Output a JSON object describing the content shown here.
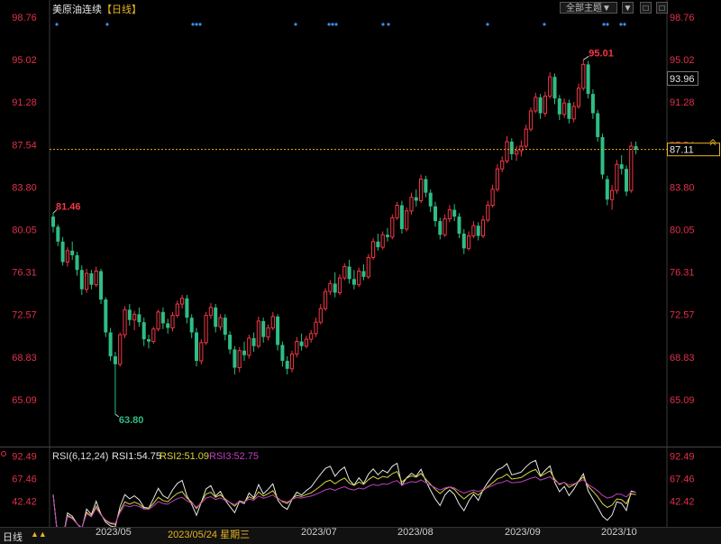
{
  "header": {
    "title": "美原油连续",
    "period_tag": "【日线】",
    "theme_button": "全部主题▼",
    "tool_buttons": [
      "▼",
      "□",
      "□"
    ]
  },
  "chart_data": {
    "type": "candlestick",
    "title": "美原油连续",
    "period": "日线",
    "y_ticks": [
      "98.76",
      "95.02",
      "91.28",
      "87.54",
      "83.80",
      "80.05",
      "76.31",
      "72.57",
      "68.83",
      "65.09"
    ],
    "ylim": [
      61.35,
      98.76
    ],
    "annotations": {
      "high_label": "95.01",
      "low_label": "63.80",
      "start_label": "81.46",
      "crosshair_value": "93.96",
      "last_price": "87.11",
      "crosshair_level": 87.11
    },
    "x_labels": [
      "2023/05",
      "2023/05/24 星期三",
      "2023/07",
      "2023/08",
      "2023/09",
      "2023/10"
    ],
    "candles": [
      [
        81.2,
        81.5,
        79.8,
        80.3
      ],
      [
        80.3,
        80.5,
        78.6,
        79.0
      ],
      [
        79.0,
        79.4,
        76.9,
        77.2
      ],
      [
        77.2,
        78.5,
        76.8,
        78.2
      ],
      [
        78.2,
        79.0,
        77.4,
        77.8
      ],
      [
        77.8,
        78.1,
        76.0,
        76.5
      ],
      [
        76.5,
        76.9,
        74.3,
        74.8
      ],
      [
        74.8,
        76.6,
        74.5,
        76.2
      ],
      [
        76.2,
        76.5,
        74.8,
        75.2
      ],
      [
        75.2,
        76.8,
        75.0,
        76.4
      ],
      [
        76.4,
        76.6,
        73.5,
        73.9
      ],
      [
        73.9,
        74.1,
        70.6,
        71.0
      ],
      [
        71.0,
        71.4,
        68.5,
        68.9
      ],
      [
        68.9,
        69.3,
        63.8,
        68.2
      ],
      [
        68.2,
        71.0,
        68.0,
        70.8
      ],
      [
        70.8,
        73.3,
        70.5,
        73.0
      ],
      [
        73.0,
        73.5,
        71.6,
        72.1
      ],
      [
        72.1,
        72.9,
        71.2,
        72.6
      ],
      [
        72.6,
        73.2,
        71.5,
        71.9
      ],
      [
        71.9,
        72.3,
        69.8,
        70.4
      ],
      [
        70.4,
        70.8,
        69.6,
        70.2
      ],
      [
        70.2,
        71.5,
        70.0,
        71.3
      ],
      [
        71.3,
        73.0,
        71.1,
        72.8
      ],
      [
        72.8,
        73.2,
        71.3,
        71.8
      ],
      [
        71.8,
        72.2,
        70.9,
        71.4
      ],
      [
        71.4,
        72.8,
        71.1,
        72.5
      ],
      [
        72.5,
        73.8,
        72.3,
        73.5
      ],
      [
        73.5,
        74.3,
        73.1,
        74.0
      ],
      [
        74.0,
        74.3,
        71.8,
        72.3
      ],
      [
        72.3,
        72.6,
        70.5,
        71.0
      ],
      [
        71.0,
        71.4,
        68.0,
        68.5
      ],
      [
        68.5,
        70.4,
        68.2,
        70.1
      ],
      [
        70.1,
        72.8,
        69.9,
        72.5
      ],
      [
        72.5,
        73.6,
        72.2,
        73.2
      ],
      [
        73.2,
        73.5,
        71.0,
        71.5
      ],
      [
        71.5,
        72.6,
        71.2,
        72.3
      ],
      [
        72.3,
        72.6,
        70.3,
        70.8
      ],
      [
        70.8,
        71.1,
        69.1,
        69.5
      ],
      [
        69.5,
        69.8,
        67.3,
        67.9
      ],
      [
        67.9,
        69.7,
        67.5,
        69.4
      ],
      [
        69.4,
        70.2,
        68.5,
        69.0
      ],
      [
        69.0,
        70.8,
        68.7,
        70.5
      ],
      [
        70.5,
        71.0,
        69.3,
        69.8
      ],
      [
        69.8,
        72.4,
        69.6,
        72.0
      ],
      [
        72.0,
        72.3,
        70.1,
        70.6
      ],
      [
        70.6,
        71.7,
        70.3,
        71.4
      ],
      [
        71.4,
        72.8,
        71.2,
        72.4
      ],
      [
        72.4,
        72.6,
        69.4,
        69.9
      ],
      [
        69.9,
        70.2,
        68.0,
        68.5
      ],
      [
        68.5,
        68.9,
        67.3,
        67.8
      ],
      [
        67.8,
        69.4,
        67.5,
        69.1
      ],
      [
        69.1,
        70.6,
        68.8,
        70.2
      ],
      [
        70.2,
        70.9,
        69.4,
        69.8
      ],
      [
        69.8,
        70.7,
        69.6,
        70.4
      ],
      [
        70.4,
        71.2,
        70.1,
        70.9
      ],
      [
        70.9,
        72.3,
        70.6,
        71.9
      ],
      [
        71.9,
        73.5,
        71.7,
        73.1
      ],
      [
        73.1,
        74.9,
        72.9,
        74.6
      ],
      [
        74.6,
        75.6,
        74.3,
        75.3
      ],
      [
        75.3,
        76.3,
        74.1,
        74.5
      ],
      [
        74.5,
        76.1,
        74.3,
        75.8
      ],
      [
        75.8,
        77.1,
        75.6,
        76.8
      ],
      [
        76.8,
        77.4,
        75.3,
        75.7
      ],
      [
        75.7,
        76.5,
        74.8,
        75.2
      ],
      [
        75.2,
        76.7,
        75.0,
        76.4
      ],
      [
        76.4,
        77.0,
        75.6,
        75.9
      ],
      [
        75.9,
        77.9,
        75.7,
        77.6
      ],
      [
        77.6,
        79.3,
        77.4,
        79.0
      ],
      [
        79.0,
        79.7,
        78.2,
        78.5
      ],
      [
        78.5,
        79.9,
        78.3,
        79.6
      ],
      [
        79.6,
        80.2,
        79.0,
        79.4
      ],
      [
        79.4,
        81.4,
        79.2,
        81.1
      ],
      [
        81.1,
        82.5,
        80.9,
        82.2
      ],
      [
        82.2,
        82.6,
        79.7,
        80.1
      ],
      [
        80.1,
        82.0,
        79.9,
        81.7
      ],
      [
        81.7,
        83.3,
        81.4,
        82.9
      ],
      [
        82.9,
        83.6,
        82.1,
        82.6
      ],
      [
        82.6,
        84.9,
        82.4,
        84.5
      ],
      [
        84.5,
        84.8,
        82.9,
        83.3
      ],
      [
        83.3,
        83.6,
        81.6,
        82.1
      ],
      [
        82.1,
        82.5,
        80.3,
        80.8
      ],
      [
        80.8,
        81.1,
        79.2,
        79.6
      ],
      [
        79.6,
        81.4,
        79.4,
        81.0
      ],
      [
        81.0,
        82.2,
        80.7,
        81.8
      ],
      [
        81.8,
        82.3,
        80.8,
        81.2
      ],
      [
        81.2,
        81.5,
        79.3,
        79.7
      ],
      [
        79.7,
        80.1,
        77.9,
        78.4
      ],
      [
        78.4,
        79.9,
        78.2,
        79.5
      ],
      [
        79.5,
        80.8,
        79.3,
        80.4
      ],
      [
        80.4,
        80.7,
        79.1,
        79.5
      ],
      [
        79.5,
        81.3,
        79.3,
        80.9
      ],
      [
        80.9,
        82.6,
        80.7,
        82.2
      ],
      [
        82.2,
        84.0,
        82.0,
        83.6
      ],
      [
        83.6,
        85.8,
        83.4,
        85.4
      ],
      [
        85.4,
        86.5,
        85.1,
        86.1
      ],
      [
        86.1,
        88.3,
        85.9,
        87.8
      ],
      [
        87.8,
        88.1,
        86.2,
        86.7
      ],
      [
        86.7,
        87.4,
        86.1,
        87.0
      ],
      [
        87.0,
        87.9,
        86.5,
        87.4
      ],
      [
        87.4,
        89.3,
        87.2,
        88.9
      ],
      [
        88.9,
        90.8,
        88.7,
        90.5
      ],
      [
        90.5,
        92.1,
        90.3,
        91.7
      ],
      [
        91.7,
        92.0,
        89.8,
        90.3
      ],
      [
        90.3,
        92.2,
        90.0,
        91.8
      ],
      [
        91.8,
        93.9,
        91.6,
        93.5
      ],
      [
        93.5,
        93.8,
        91.1,
        91.6
      ],
      [
        91.6,
        91.9,
        89.7,
        90.2
      ],
      [
        90.2,
        91.6,
        89.9,
        91.2
      ],
      [
        91.2,
        91.5,
        89.4,
        89.8
      ],
      [
        89.8,
        91.3,
        89.5,
        90.9
      ],
      [
        90.9,
        92.9,
        90.7,
        92.5
      ],
      [
        92.5,
        95.0,
        92.3,
        94.6
      ],
      [
        94.6,
        94.9,
        91.6,
        92.0
      ],
      [
        92.0,
        92.4,
        89.8,
        90.3
      ],
      [
        90.3,
        90.6,
        87.8,
        88.2
      ],
      [
        88.2,
        88.5,
        84.5,
        84.9
      ],
      [
        84.5,
        84.8,
        82.2,
        82.7
      ],
      [
        82.7,
        84.0,
        81.8,
        83.5
      ],
      [
        83.5,
        86.2,
        83.2,
        85.8
      ],
      [
        85.8,
        86.6,
        84.9,
        85.4
      ],
      [
        85.4,
        85.7,
        83.0,
        83.4
      ],
      [
        83.5,
        87.8,
        83.3,
        87.4
      ],
      [
        87.4,
        87.8,
        86.7,
        87.1
      ]
    ]
  },
  "dots": {
    "color": "#3a8ee6",
    "x": [
      63,
      119,
      214,
      218,
      222,
      328,
      365,
      369,
      373,
      425,
      431,
      541,
      604,
      670,
      674,
      689,
      693
    ]
  },
  "rsi": {
    "label": "RSI(6,12,24)",
    "rsi1": "RSI1:54.75",
    "rsi2": "RSI2:51.09",
    "rsi3": "RSI3:52.75",
    "ticks": [
      "92.49",
      "67.46",
      "42.42"
    ],
    "ylim": [
      15,
      100
    ]
  },
  "footer": {
    "label": "日线",
    "arrows": "▲▲"
  },
  "colors": {
    "up": "#f23645",
    "down": "#2ebd85",
    "axis_text": "#e0304a",
    "rsi1": "#e8e8e8",
    "rsi2": "#d8d440",
    "rsi3": "#c040c0",
    "crosshair": "#e6b422"
  }
}
